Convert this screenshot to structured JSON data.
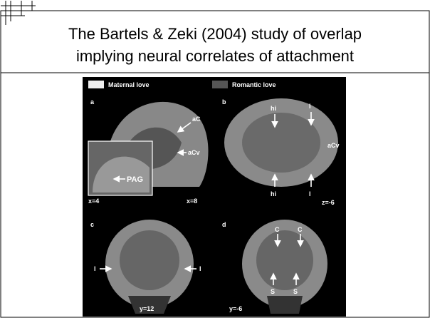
{
  "header": {
    "title_lines": [
      "The Bartels & Zeki (2004) study of overlap",
      "implying neural correlates of attachment"
    ]
  },
  "figure": {
    "legend": [
      "Maternal love",
      "Romantic love"
    ],
    "panels": [
      {
        "label": "a",
        "annotations": [
          "aC",
          "aCv",
          "PAG",
          "x=4",
          "x=8"
        ]
      },
      {
        "label": "b",
        "annotations": [
          "hi",
          "l",
          "aCv",
          "hi",
          "l",
          "z=-6"
        ]
      },
      {
        "label": "c",
        "annotations": [
          "l",
          "l",
          "y=12"
        ]
      },
      {
        "label": "d",
        "annotations": [
          "C",
          "C",
          "S",
          "S",
          "y=-6"
        ]
      }
    ]
  }
}
